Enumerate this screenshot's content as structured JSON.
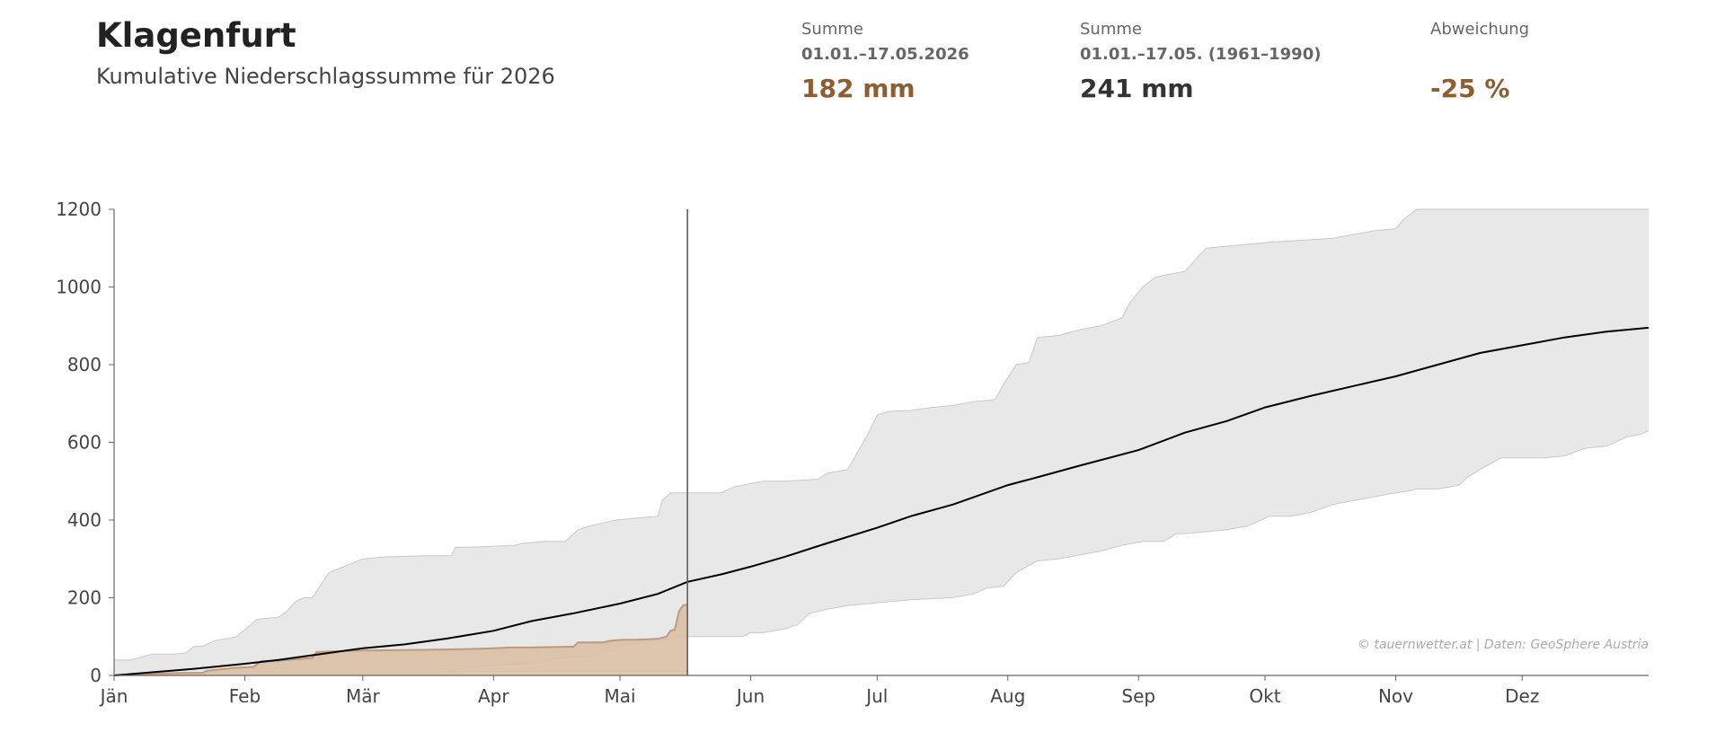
{
  "header": {
    "station": "Klagenfurt",
    "subtitle": "Kumulative Niederschlagssumme für 2026"
  },
  "stats": [
    {
      "label": "Summe",
      "period": "01.01.–17.05.2026",
      "value": "182 mm",
      "color": "#8b5e34"
    },
    {
      "label": "Summe",
      "period": "01.01.–17.05. (1961–1990)",
      "value": "241 mm",
      "color": "#333333"
    },
    {
      "label": "Abweichung",
      "period": "",
      "value": "-25 %",
      "color": "#8b5e34"
    }
  ],
  "credit": "© tauernwetter.at | Daten: GeoSphere Austria",
  "colors": {
    "current_fill": "#d9bfa5",
    "current_line": "#c09a78",
    "band_fill": "#e8e8e8",
    "band_line": "#c8c8c8",
    "mean_line": "#000000",
    "axis": "#666666"
  },
  "chart_data": {
    "type": "area",
    "xlim": [
      1,
      365
    ],
    "ylim": [
      0,
      1200
    ],
    "yticks": [
      0,
      200,
      400,
      600,
      800,
      1000,
      1200
    ],
    "xtick_labels": [
      "Jän",
      "Feb",
      "Mär",
      "Apr",
      "Mai",
      "Jun",
      "Jul",
      "Aug",
      "Sep",
      "Okt",
      "Nov",
      "Dez"
    ],
    "xtick_days": [
      1,
      32,
      60,
      91,
      121,
      152,
      182,
      213,
      244,
      274,
      305,
      335
    ],
    "current_day_marker": 137,
    "series": [
      {
        "key": "current",
        "x": [
          1,
          8,
          15,
          22,
          23,
          30,
          34,
          36,
          40,
          48,
          49,
          53,
          60,
          67,
          74,
          81,
          88,
          91,
          95,
          100,
          105,
          110,
          111,
          117,
          119,
          122,
          125,
          130,
          132,
          133,
          134,
          135,
          136,
          137
        ],
        "values": [
          0,
          3,
          6,
          7,
          12,
          20,
          22,
          37,
          38,
          45,
          60,
          62,
          64,
          65,
          66,
          67,
          69,
          70,
          72,
          72,
          73,
          74,
          85,
          85,
          90,
          92,
          92,
          94,
          100,
          115,
          118,
          165,
          181,
          182
        ]
      },
      {
        "key": "mean",
        "x": [
          1,
          10,
          20,
          32,
          40,
          50,
          60,
          70,
          80,
          91,
          100,
          110,
          121,
          130,
          137,
          145,
          152,
          160,
          170,
          182,
          190,
          200,
          213,
          220,
          230,
          244,
          255,
          265,
          274,
          285,
          295,
          305,
          315,
          325,
          335,
          345,
          355,
          365
        ],
        "values": [
          0,
          8,
          17,
          30,
          40,
          55,
          70,
          80,
          95,
          115,
          140,
          160,
          185,
          210,
          241,
          260,
          280,
          305,
          340,
          380,
          410,
          440,
          490,
          510,
          540,
          580,
          625,
          655,
          690,
          720,
          745,
          770,
          800,
          830,
          850,
          870,
          885,
          895
        ]
      },
      {
        "key": "max",
        "x": [
          1,
          5,
          10,
          15,
          18,
          20,
          22,
          25,
          28,
          30,
          35,
          40,
          42,
          44,
          46,
          48,
          52,
          60,
          65,
          75,
          81,
          82,
          85,
          90,
          96,
          98,
          103,
          108,
          109,
          111,
          114,
          116,
          120,
          125,
          130,
          131,
          133,
          136,
          137,
          145,
          148,
          155,
          160,
          168,
          170,
          175,
          180,
          182,
          185,
          190,
          195,
          200,
          205,
          210,
          212,
          215,
          218,
          220,
          225,
          230,
          235,
          240,
          242,
          245,
          248,
          250,
          255,
          260,
          265,
          270,
          275,
          290,
          295,
          300,
          305,
          307,
          310,
          315,
          320,
          330,
          340,
          350,
          360,
          363,
          365
        ],
        "values": [
          40,
          40,
          55,
          55,
          58,
          75,
          75,
          90,
          95,
          100,
          145,
          150,
          165,
          190,
          200,
          200,
          265,
          300,
          305,
          308,
          308,
          330,
          330,
          332,
          335,
          340,
          345,
          345,
          355,
          375,
          385,
          390,
          400,
          405,
          410,
          450,
          470,
          470,
          470,
          470,
          485,
          500,
          500,
          505,
          520,
          530,
          625,
          670,
          680,
          682,
          690,
          695,
          705,
          710,
          750,
          800,
          805,
          870,
          875,
          890,
          900,
          920,
          960,
          1000,
          1025,
          1030,
          1040,
          1100,
          1105,
          1110,
          1115,
          1125,
          1135,
          1145,
          1150,
          1175,
          1200,
          1200,
          1200,
          1200,
          1200,
          1200,
          1200,
          1200,
          1200
        ]
      },
      {
        "key": "min",
        "x": [
          1,
          70,
          80,
          82,
          85,
          90,
          95,
          100,
          103,
          106,
          115,
          120,
          122,
          125,
          130,
          137,
          145,
          150,
          152,
          155,
          160,
          163,
          166,
          170,
          175,
          180,
          185,
          190,
          200,
          205,
          208,
          212,
          215,
          220,
          225,
          230,
          235,
          240,
          245,
          250,
          253,
          255,
          260,
          265,
          270,
          275,
          280,
          285,
          290,
          295,
          300,
          305,
          308,
          310,
          315,
          320,
          322,
          325,
          330,
          340,
          345,
          350,
          355,
          360,
          363,
          365
        ],
        "values": [
          0,
          0,
          0,
          15,
          20,
          25,
          28,
          30,
          35,
          45,
          50,
          70,
          80,
          85,
          90,
          100,
          100,
          100,
          110,
          110,
          120,
          130,
          160,
          170,
          180,
          185,
          190,
          195,
          200,
          210,
          225,
          230,
          265,
          295,
          300,
          310,
          320,
          335,
          345,
          345,
          365,
          365,
          370,
          375,
          385,
          410,
          410,
          420,
          440,
          450,
          460,
          470,
          475,
          480,
          480,
          490,
          510,
          530,
          560,
          560,
          565,
          585,
          590,
          615,
          620,
          630
        ]
      }
    ]
  }
}
